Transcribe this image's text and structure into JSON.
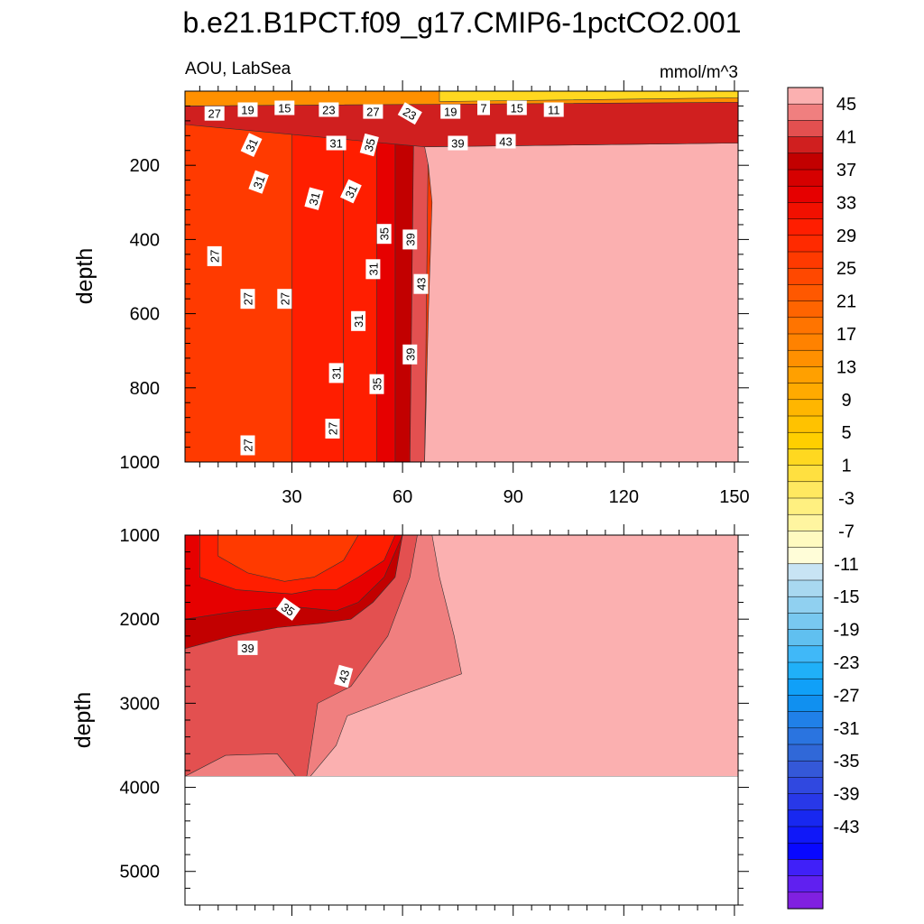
{
  "chart_data": {
    "type": "contour",
    "title": "b.e21.B1PCT.f09_g17.CMIP6-1pctCO2.001",
    "variable_label": "AOU, LabSea",
    "units_label": "mmol/m^3",
    "x_ticks": [
      "30",
      "60",
      "90",
      "120",
      "150"
    ],
    "x_tick_values": [
      30,
      60,
      90,
      120,
      150
    ],
    "xlim": [
      1,
      151
    ],
    "panels": [
      {
        "name": "upper",
        "ylabel": "depth",
        "ylim": [
          0,
          1000
        ],
        "y_ticks": [
          "200",
          "400",
          "600",
          "800",
          "1000"
        ],
        "y_tick_values": [
          200,
          400,
          600,
          800,
          1000
        ],
        "regions": [
          {
            "level": 27,
            "pts": [
              [
                1,
                0
              ],
              [
                151,
                0
              ],
              [
                151,
                1000
              ],
              [
                1,
                1000
              ]
            ]
          },
          {
            "level": 31,
            "pts": [
              [
                30,
                60
              ],
              [
                44,
                60
              ],
              [
                44,
                1000
              ],
              [
                30,
                1000
              ]
            ]
          },
          {
            "level": 31,
            "pts": [
              [
                44,
                60
              ],
              [
                60,
                60
              ],
              [
                60,
                1000
              ],
              [
                44,
                1000
              ]
            ]
          },
          {
            "level": 35,
            "pts": [
              [
                53,
                60
              ],
              [
                60,
                60
              ],
              [
                60,
                1000
              ],
              [
                53,
                1000
              ]
            ]
          },
          {
            "level": 39,
            "pts": [
              [
                58,
                80
              ],
              [
                64,
                80
              ],
              [
                64,
                1000
              ],
              [
                58,
                1000
              ]
            ]
          },
          {
            "level": 43,
            "pts": [
              [
                63,
                120
              ],
              [
                67,
                120
              ],
              [
                66,
                1000
              ],
              [
                62,
                1000
              ]
            ]
          },
          {
            "level": 47,
            "pts": [
              [
                66,
                150
              ],
              [
                151,
                140
              ],
              [
                151,
                1000
              ],
              [
                66,
                1000
              ],
              [
                67,
                600
              ],
              [
                68,
                300
              ],
              [
                67,
                200
              ]
            ]
          },
          {
            "level": 41,
            "pts": [
              [
                1,
                40
              ],
              [
                151,
                25
              ],
              [
                151,
                140
              ],
              [
                66,
                150
              ],
              [
                1,
                90
              ]
            ]
          },
          {
            "level": 15,
            "pts": [
              [
                1,
                0
              ],
              [
                151,
                0
              ],
              [
                151,
                30
              ],
              [
                1,
                40
              ]
            ]
          },
          {
            "level": 3,
            "pts": [
              [
                70,
                0
              ],
              [
                151,
                0
              ],
              [
                151,
                18
              ],
              [
                70,
                28
              ]
            ]
          }
        ],
        "contour_labels": [
          {
            "text": "27",
            "x": 9,
            "y": 60,
            "rot": 0
          },
          {
            "text": "19",
            "x": 18,
            "y": 50,
            "rot": 0
          },
          {
            "text": "15",
            "x": 28,
            "y": 45,
            "rot": 0
          },
          {
            "text": "23",
            "x": 40,
            "y": 50,
            "rot": 0
          },
          {
            "text": "27",
            "x": 52,
            "y": 55,
            "rot": 0
          },
          {
            "text": "23",
            "x": 62,
            "y": 60,
            "rot": 30
          },
          {
            "text": "19",
            "x": 73,
            "y": 55,
            "rot": 0
          },
          {
            "text": "7",
            "x": 82,
            "y": 45,
            "rot": 0
          },
          {
            "text": "15",
            "x": 91,
            "y": 45,
            "rot": 0
          },
          {
            "text": "11",
            "x": 101,
            "y": 50,
            "rot": 0
          },
          {
            "text": "39",
            "x": 75,
            "y": 140,
            "rot": 0
          },
          {
            "text": "43",
            "x": 88,
            "y": 135,
            "rot": 0
          },
          {
            "text": "31",
            "x": 19,
            "y": 145,
            "rot": -65
          },
          {
            "text": "31",
            "x": 42,
            "y": 140,
            "rot": 0
          },
          {
            "text": "35",
            "x": 51,
            "y": 145,
            "rot": -75
          },
          {
            "text": "31",
            "x": 21,
            "y": 245,
            "rot": -70
          },
          {
            "text": "31",
            "x": 36,
            "y": 290,
            "rot": -75
          },
          {
            "text": "31",
            "x": 46,
            "y": 270,
            "rot": -65
          },
          {
            "text": "35",
            "x": 55,
            "y": 385,
            "rot": -90
          },
          {
            "text": "39",
            "x": 62,
            "y": 400,
            "rot": -90
          },
          {
            "text": "27",
            "x": 9,
            "y": 445,
            "rot": -90
          },
          {
            "text": "31",
            "x": 52,
            "y": 480,
            "rot": -90
          },
          {
            "text": "43",
            "x": 65,
            "y": 520,
            "rot": -90
          },
          {
            "text": "27",
            "x": 18,
            "y": 560,
            "rot": -90
          },
          {
            "text": "27",
            "x": 28,
            "y": 560,
            "rot": -90
          },
          {
            "text": "31",
            "x": 48,
            "y": 620,
            "rot": -90
          },
          {
            "text": "39",
            "x": 62,
            "y": 710,
            "rot": -90
          },
          {
            "text": "31",
            "x": 42,
            "y": 760,
            "rot": -90
          },
          {
            "text": "35",
            "x": 53,
            "y": 790,
            "rot": -90
          },
          {
            "text": "27",
            "x": 41,
            "y": 910,
            "rot": -90
          },
          {
            "text": "27",
            "x": 18,
            "y": 955,
            "rot": -90
          }
        ]
      },
      {
        "name": "lower",
        "ylabel": "depth",
        "ylim": [
          1000,
          5400
        ],
        "y_ticks": [
          "1000",
          "2000",
          "3000",
          "4000",
          "5000"
        ],
        "y_tick_values": [
          1000,
          2000,
          3000,
          4000,
          5000
        ],
        "data_bottom": 3870,
        "regions": [
          {
            "level": 47,
            "pts": [
              [
                1,
                1000
              ],
              [
                151,
                1000
              ],
              [
                151,
                3870
              ],
              [
                1,
                3870
              ]
            ]
          },
          {
            "level": 45,
            "pts": [
              [
                1,
                1000
              ],
              [
                68,
                1000
              ],
              [
                70,
                1500
              ],
              [
                74,
                2200
              ],
              [
                76,
                2650
              ],
              [
                60,
                2900
              ],
              [
                45,
                3150
              ],
              [
                42,
                3500
              ],
              [
                35,
                3870
              ],
              [
                1,
                3870
              ]
            ]
          },
          {
            "level": 43,
            "pts": [
              [
                1,
                1000
              ],
              [
                64,
                1000
              ],
              [
                62,
                1500
              ],
              [
                56,
                2200
              ],
              [
                46,
                2800
              ],
              [
                37,
                3000
              ],
              [
                34,
                3870
              ],
              [
                31,
                3870
              ],
              [
                26,
                3600
              ],
              [
                12,
                3620
              ],
              [
                1,
                3870
              ]
            ]
          },
          {
            "level": 39,
            "pts": [
              [
                1,
                1000
              ],
              [
                60,
                1000
              ],
              [
                58,
                1500
              ],
              [
                52,
                1800
              ],
              [
                46,
                2000
              ],
              [
                38,
                2050
              ],
              [
                26,
                2100
              ],
              [
                14,
                2200
              ],
              [
                1,
                2350
              ]
            ]
          },
          {
            "level": 35,
            "pts": [
              [
                1,
                1000
              ],
              [
                60,
                1000
              ],
              [
                55,
                1500
              ],
              [
                48,
                1800
              ],
              [
                42,
                1900
              ],
              [
                30,
                1850
              ],
              [
                16,
                1900
              ],
              [
                1,
                2000
              ]
            ]
          },
          {
            "level": 31,
            "pts": [
              [
                5,
                1000
              ],
              [
                58,
                1000
              ],
              [
                55,
                1300
              ],
              [
                48,
                1500
              ],
              [
                42,
                1650
              ],
              [
                36,
                1650
              ],
              [
                30,
                1700
              ],
              [
                15,
                1650
              ],
              [
                5,
                1500
              ]
            ]
          },
          {
            "level": 27,
            "pts": [
              [
                10,
                1000
              ],
              [
                48,
                1000
              ],
              [
                44,
                1300
              ],
              [
                36,
                1500
              ],
              [
                28,
                1550
              ],
              [
                18,
                1450
              ],
              [
                10,
                1250
              ]
            ]
          }
        ],
        "contour_labels": [
          {
            "text": "35",
            "x": 29,
            "y": 1880,
            "rot": 35
          },
          {
            "text": "39",
            "x": 18,
            "y": 2340,
            "rot": 0
          },
          {
            "text": "43",
            "x": 44,
            "y": 2680,
            "rot": -75
          }
        ]
      }
    ],
    "colorbar": {
      "labels": [
        "45",
        "41",
        "37",
        "33",
        "29",
        "25",
        "21",
        "17",
        "13",
        "9",
        "5",
        "1",
        "-3",
        "-7",
        "-11",
        "-15",
        "-19",
        "-23",
        "-27",
        "-31",
        "-35",
        "-39",
        "-43"
      ],
      "colors_top_to_bottom": [
        "#fbb0b0",
        "#f07f7f",
        "#e35050",
        "#d01f1f",
        "#c20000",
        "#d60000",
        "#e60000",
        "#f21000",
        "#ff1e00",
        "#ff2a00",
        "#ff3a00",
        "#ff4800",
        "#ff5800",
        "#ff6400",
        "#ff7400",
        "#ff8200",
        "#ff9000",
        "#ffa000",
        "#ffaa00",
        "#ffb600",
        "#ffc200",
        "#ffcf00",
        "#ffd820",
        "#ffe040",
        "#ffe860",
        "#fff080",
        "#fff5a0",
        "#fffac0",
        "#fffdd8",
        "#c8e4f4",
        "#a8d8f0",
        "#90d0f0",
        "#78c8f0",
        "#60c0f0",
        "#40b8f8",
        "#20b0f8",
        "#10a0f8",
        "#1090f0",
        "#2080e8",
        "#2a74e0",
        "#3068d8",
        "#3458d8",
        "#3048e0",
        "#2838e8",
        "#1828f0",
        "#1018f8",
        "#0808ff",
        "#4020f8",
        "#6020f0",
        "#8020e0"
      ]
    }
  }
}
